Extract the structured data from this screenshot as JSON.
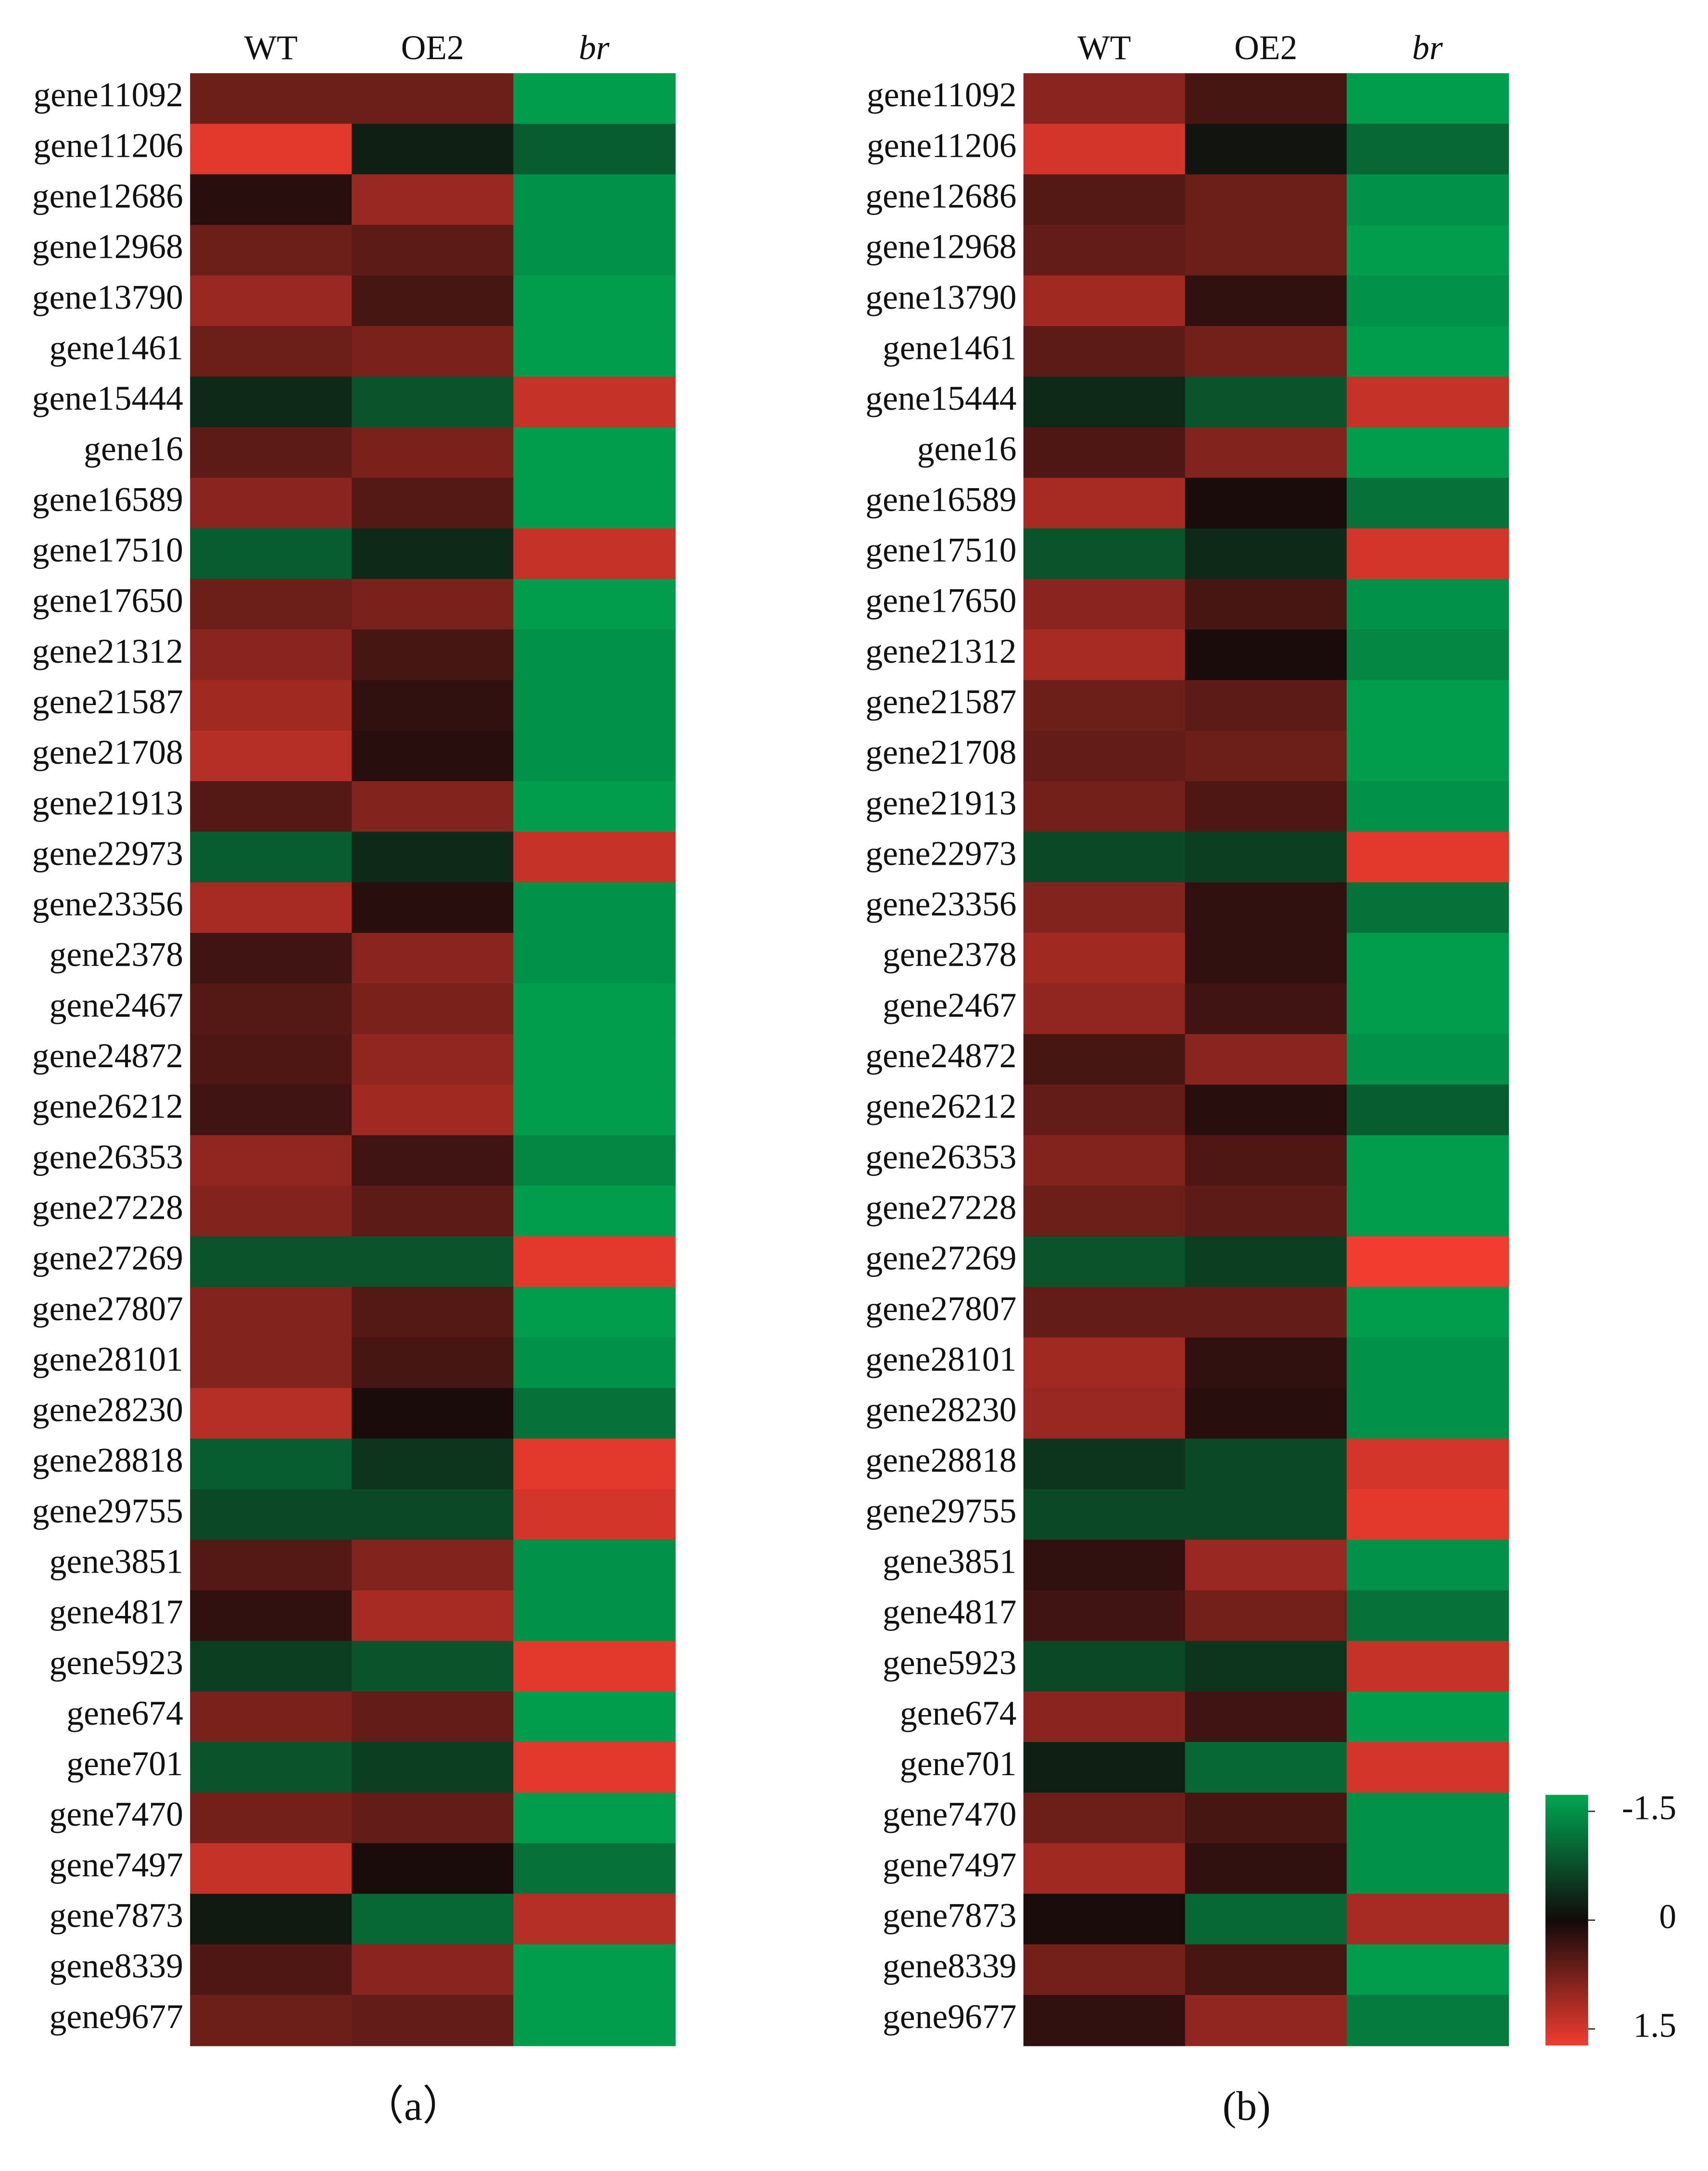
{
  "chart_data": [
    {
      "type": "heatmap",
      "label": "（a）",
      "columns": [
        "WT",
        "OE2",
        "br"
      ],
      "categories": [
        "gene11092",
        "gene11206",
        "gene12686",
        "gene12968",
        "gene13790",
        "gene1461",
        "gene15444",
        "gene16",
        "gene16589",
        "gene17510",
        "gene17650",
        "gene21312",
        "gene21587",
        "gene21708",
        "gene21913",
        "gene22973",
        "gene23356",
        "gene2378",
        "gene2467",
        "gene24872",
        "gene26212",
        "gene26353",
        "gene27228",
        "gene27269",
        "gene27807",
        "gene28101",
        "gene28230",
        "gene28818",
        "gene29755",
        "gene3851",
        "gene4817",
        "gene5923",
        "gene674",
        "gene701",
        "gene7470",
        "gene7497",
        "gene7873",
        "gene8339",
        "gene9677"
      ],
      "values": [
        [
          0.6,
          0.6,
          -1.4
        ],
        [
          1.4,
          -0.2,
          -0.8
        ],
        [
          0.15,
          0.9,
          -1.3
        ],
        [
          0.6,
          0.5,
          -1.3
        ],
        [
          0.9,
          0.35,
          -1.4
        ],
        [
          0.6,
          0.7,
          -1.4
        ],
        [
          -0.3,
          -0.7,
          1.2
        ],
        [
          0.5,
          0.7,
          -1.4
        ],
        [
          0.8,
          0.45,
          -1.4
        ],
        [
          -0.8,
          -0.3,
          1.2
        ],
        [
          0.6,
          0.7,
          -1.4
        ],
        [
          0.8,
          0.35,
          -1.3
        ],
        [
          0.95,
          0.2,
          -1.3
        ],
        [
          1.1,
          0.15,
          -1.3
        ],
        [
          0.45,
          0.75,
          -1.4
        ],
        [
          -0.8,
          -0.3,
          1.2
        ],
        [
          1.0,
          0.15,
          -1.3
        ],
        [
          0.3,
          0.8,
          -1.3
        ],
        [
          0.45,
          0.7,
          -1.4
        ],
        [
          0.4,
          0.85,
          -1.4
        ],
        [
          0.3,
          0.95,
          -1.4
        ],
        [
          0.85,
          0.3,
          -1.2
        ],
        [
          0.75,
          0.5,
          -1.4
        ],
        [
          -0.7,
          -0.7,
          1.4
        ],
        [
          0.75,
          0.45,
          -1.4
        ],
        [
          0.75,
          0.35,
          -1.3
        ],
        [
          1.1,
          0.05,
          -1.0
        ],
        [
          -0.8,
          -0.4,
          1.4
        ],
        [
          -0.6,
          -0.6,
          1.3
        ],
        [
          0.45,
          0.75,
          -1.3
        ],
        [
          0.2,
          1.0,
          -1.3
        ],
        [
          -0.5,
          -0.7,
          1.4
        ],
        [
          0.7,
          0.55,
          -1.4
        ],
        [
          -0.7,
          -0.5,
          1.4
        ],
        [
          0.65,
          0.55,
          -1.4
        ],
        [
          1.2,
          0.05,
          -1.0
        ],
        [
          -0.15,
          -0.9,
          1.1
        ],
        [
          0.4,
          0.8,
          -1.4
        ],
        [
          0.6,
          0.55,
          -1.4
        ]
      ],
      "zlim": [
        -1.5,
        1.5
      ],
      "colors": {
        "low": "#00a651",
        "mid": "#120a0a",
        "high": "#f23c30"
      }
    },
    {
      "type": "heatmap",
      "label": "(b)",
      "columns": [
        "WT",
        "OE2",
        "br"
      ],
      "categories": [
        "gene11092",
        "gene11206",
        "gene12686",
        "gene12968",
        "gene13790",
        "gene1461",
        "gene15444",
        "gene16",
        "gene16589",
        "gene17510",
        "gene17650",
        "gene21312",
        "gene21587",
        "gene21708",
        "gene21913",
        "gene22973",
        "gene23356",
        "gene2378",
        "gene2467",
        "gene24872",
        "gene26212",
        "gene26353",
        "gene27228",
        "gene27269",
        "gene27807",
        "gene28101",
        "gene28230",
        "gene28818",
        "gene29755",
        "gene3851",
        "gene4817",
        "gene5923",
        "gene674",
        "gene701",
        "gene7470",
        "gene7497",
        "gene7873",
        "gene8339",
        "gene9677"
      ],
      "values": [
        [
          0.8,
          0.35,
          -1.4
        ],
        [
          1.3,
          -0.1,
          -0.9
        ],
        [
          0.45,
          0.6,
          -1.3
        ],
        [
          0.55,
          0.6,
          -1.4
        ],
        [
          0.95,
          0.2,
          -1.3
        ],
        [
          0.5,
          0.65,
          -1.4
        ],
        [
          -0.3,
          -0.7,
          1.2
        ],
        [
          0.4,
          0.75,
          -1.4
        ],
        [
          1.0,
          0.05,
          -1.0
        ],
        [
          -0.7,
          -0.3,
          1.3
        ],
        [
          0.8,
          0.35,
          -1.3
        ],
        [
          1.0,
          0.05,
          -1.2
        ],
        [
          0.6,
          0.5,
          -1.4
        ],
        [
          0.55,
          0.6,
          -1.4
        ],
        [
          0.65,
          0.4,
          -1.3
        ],
        [
          -0.6,
          -0.5,
          1.4
        ],
        [
          0.75,
          0.2,
          -1.0
        ],
        [
          0.95,
          0.2,
          -1.4
        ],
        [
          0.85,
          0.3,
          -1.4
        ],
        [
          0.35,
          0.8,
          -1.3
        ],
        [
          0.55,
          0.15,
          -0.8
        ],
        [
          0.75,
          0.4,
          -1.4
        ],
        [
          0.6,
          0.5,
          -1.4
        ],
        [
          -0.7,
          -0.5,
          1.5
        ],
        [
          0.55,
          0.55,
          -1.4
        ],
        [
          0.95,
          0.2,
          -1.3
        ],
        [
          0.9,
          0.15,
          -1.3
        ],
        [
          -0.4,
          -0.6,
          1.3
        ],
        [
          -0.6,
          -0.6,
          1.4
        ],
        [
          0.2,
          0.9,
          -1.3
        ],
        [
          0.3,
          0.65,
          -1.0
        ],
        [
          -0.6,
          -0.4,
          1.2
        ],
        [
          0.8,
          0.3,
          -1.4
        ],
        [
          -0.2,
          -0.9,
          1.3
        ],
        [
          0.6,
          0.35,
          -1.3
        ],
        [
          0.95,
          0.2,
          -1.3
        ],
        [
          0.05,
          -0.9,
          1.0
        ],
        [
          0.65,
          0.35,
          -1.4
        ],
        [
          0.2,
          0.85,
          -1.1
        ]
      ],
      "zlim": [
        -1.5,
        1.5
      ],
      "zticks": [
        -1.5,
        0,
        1.5
      ],
      "colors": {
        "low": "#00a651",
        "mid": "#120a0a",
        "high": "#f23c30"
      }
    }
  ]
}
